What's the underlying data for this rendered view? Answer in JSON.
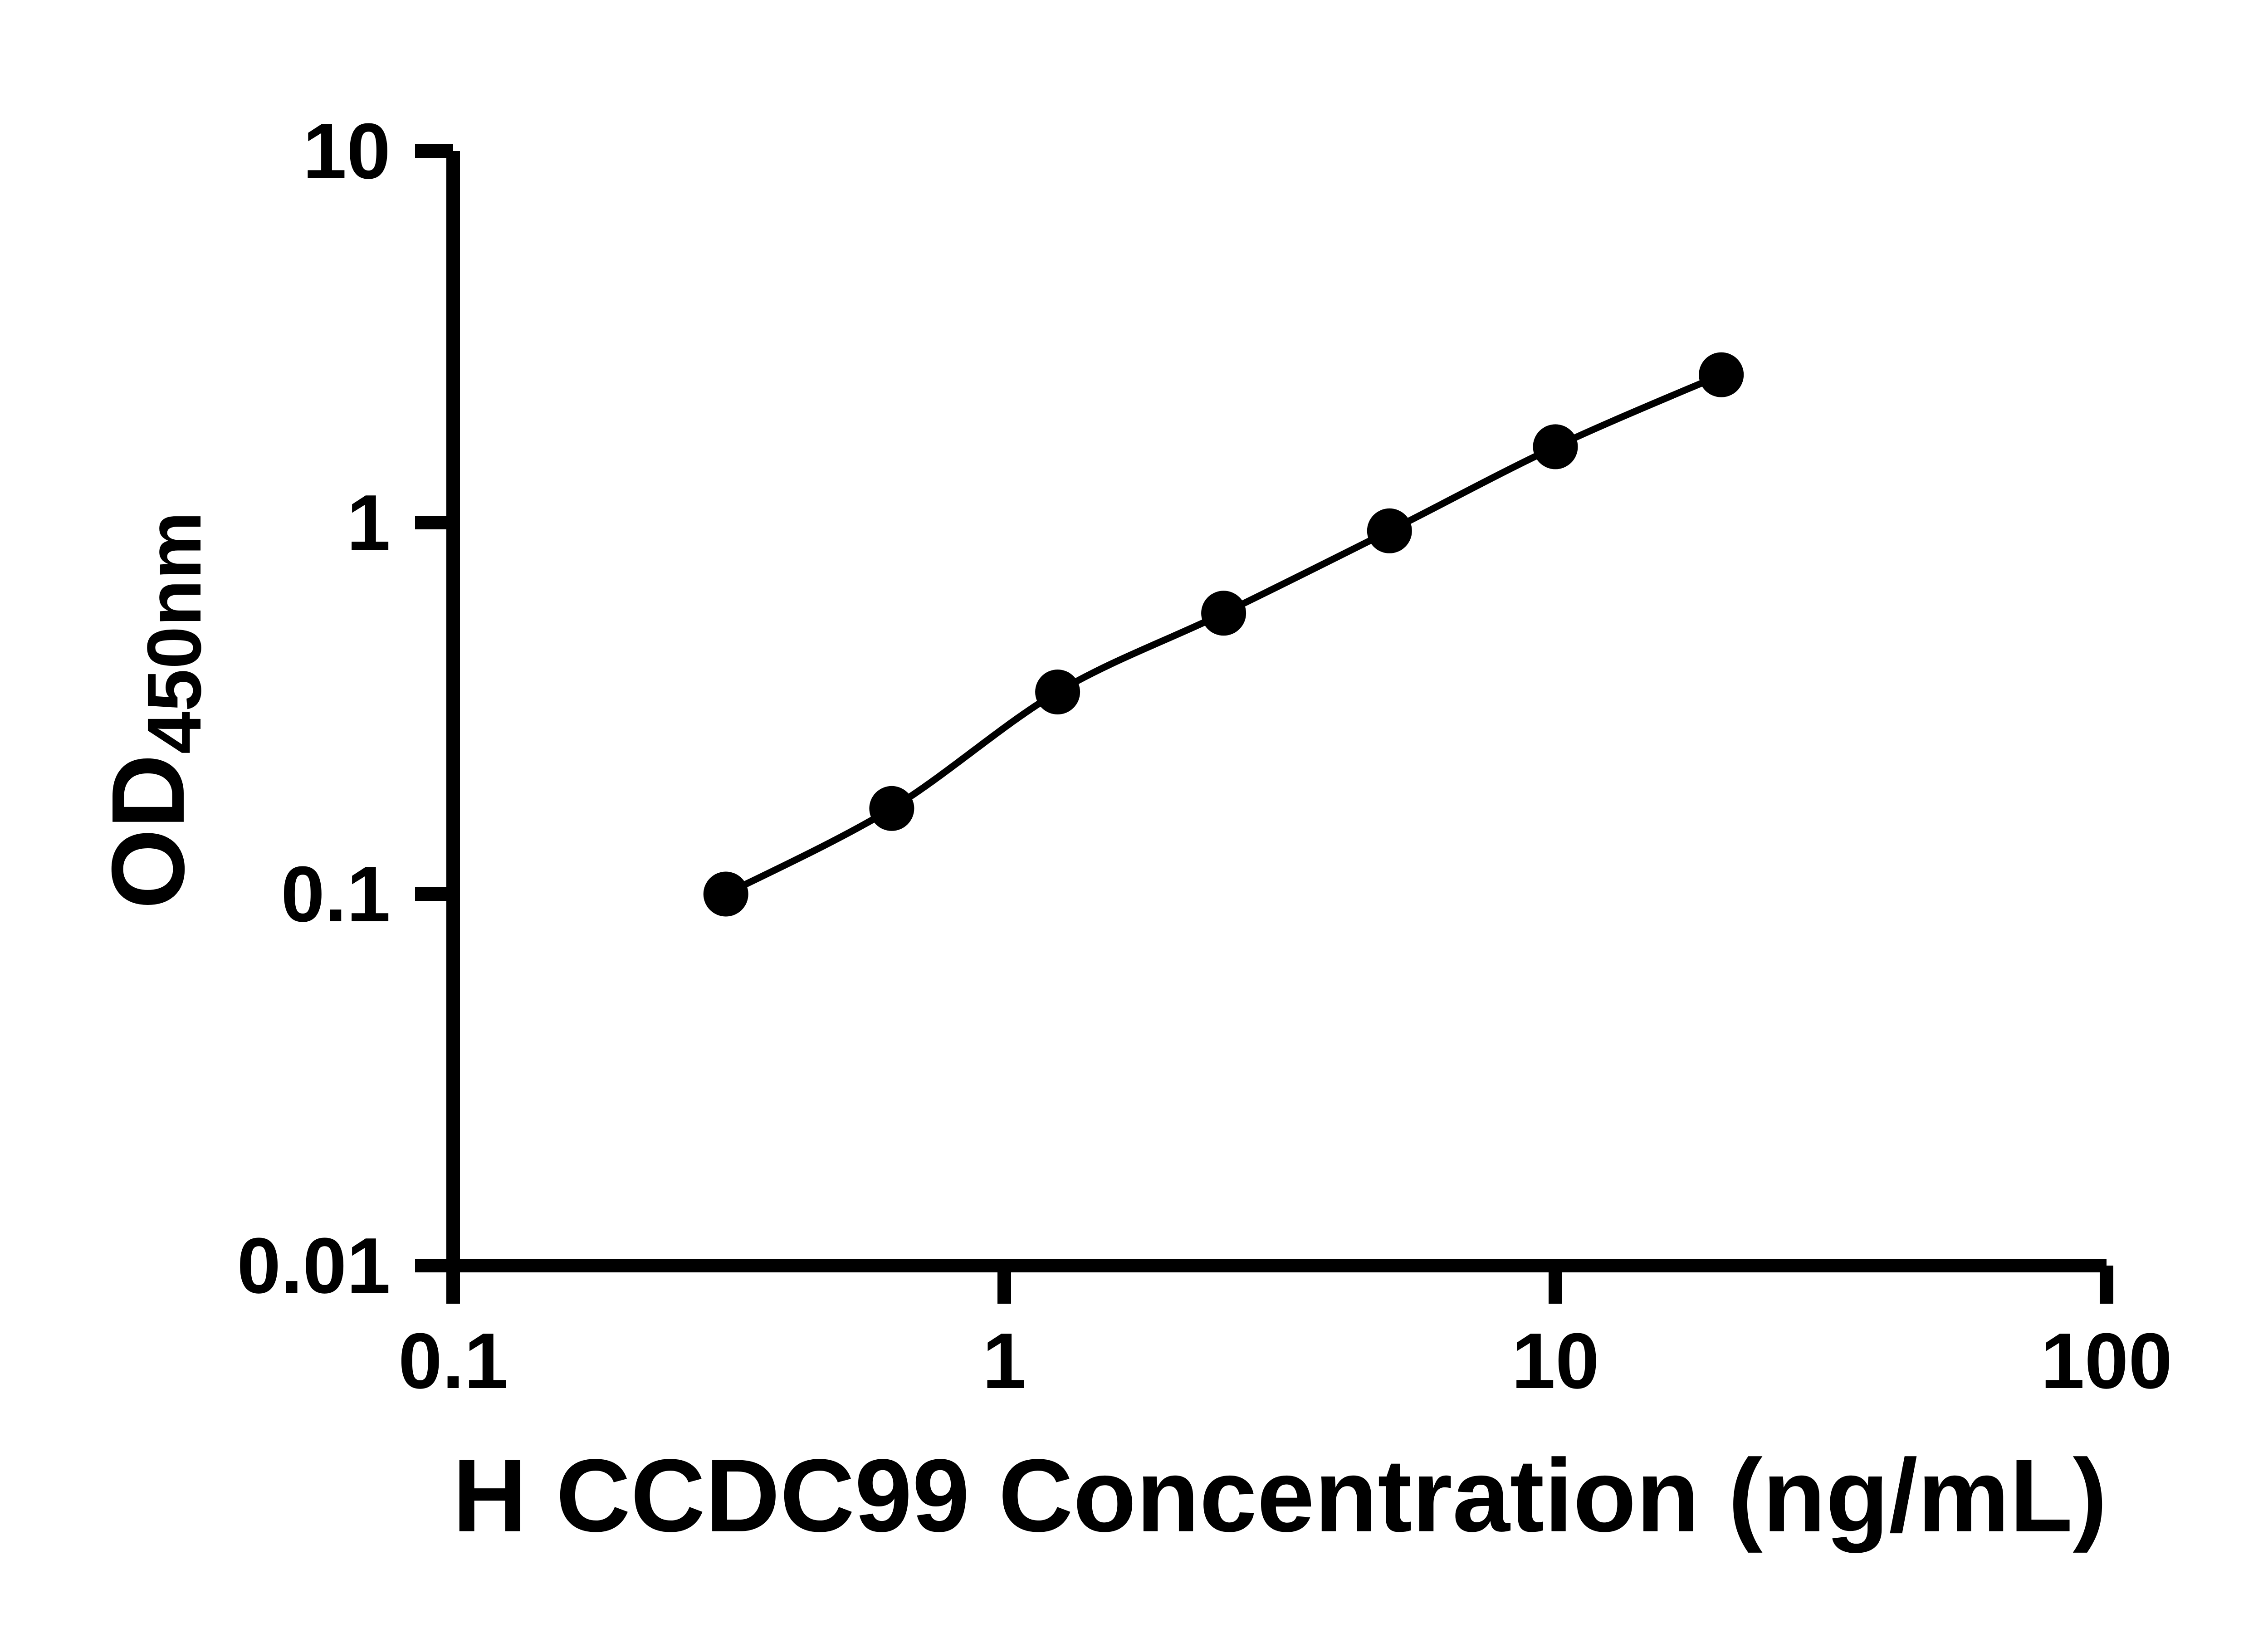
{
  "figure": {
    "background_color": "#ffffff",
    "foreground_color": "#000000"
  },
  "chart_data": {
    "type": "scatter",
    "title": "",
    "xlabel": "H CCDC99 Concentration (ng/mL)",
    "ylabel_main": "OD",
    "ylabel_sub": "450nm",
    "x_scale": "log",
    "y_scale": "log",
    "xlim": [
      0.1,
      100
    ],
    "ylim": [
      0.01,
      10
    ],
    "x_ticks": [
      0.1,
      1,
      10,
      100
    ],
    "x_tick_labels": [
      "0.1",
      "1",
      "10",
      "100"
    ],
    "y_ticks": [
      0.01,
      0.1,
      1,
      10
    ],
    "y_tick_labels": [
      "0.01",
      "0.1",
      "1",
      "10"
    ],
    "grid": false,
    "legend": false,
    "marker": "circle",
    "marker_color": "#000000",
    "line_color": "#000000",
    "x": [
      0.3125,
      0.625,
      1.25,
      2.5,
      5,
      10,
      20
    ],
    "y": [
      0.1,
      0.17,
      0.35,
      0.57,
      0.95,
      1.6,
      2.5
    ]
  }
}
